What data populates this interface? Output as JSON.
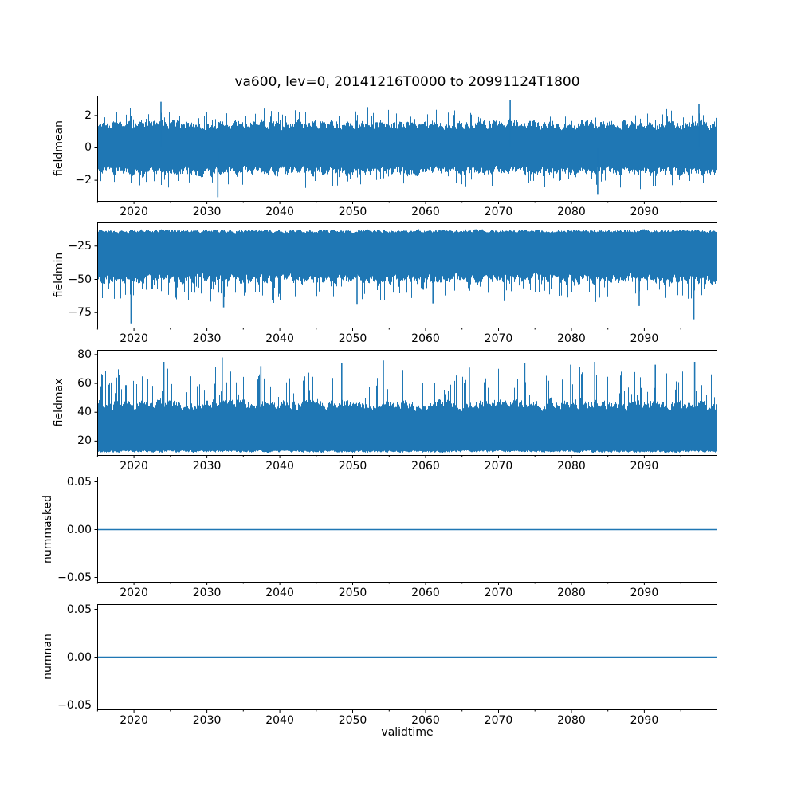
{
  "figure": {
    "title": "va600, lev=0, 20141216T0000 to 20991124T1800",
    "xlabel": "validtime",
    "line_color": "#1f77b4",
    "axis_color": "#000000",
    "background": "#ffffff",
    "seed": 1337
  },
  "x_axis": {
    "min": 2014.96,
    "max": 2099.9,
    "major_ticks": [
      2020,
      2030,
      2040,
      2050,
      2060,
      2070,
      2080,
      2090
    ],
    "major_tick_labels": [
      "2020",
      "2030",
      "2040",
      "2050",
      "2060",
      "2070",
      "2080",
      "2090"
    ],
    "minor_ticks": [
      2015,
      2025,
      2035,
      2045,
      2055,
      2065,
      2075,
      2085,
      2095
    ]
  },
  "chart_data": [
    {
      "type": "line",
      "name": "fieldmean",
      "ylabel": "fieldmean",
      "ylim": [
        -3.3,
        3.2
      ],
      "yticks": [
        2,
        0,
        -2
      ],
      "ytick_labels": [
        "2",
        "0",
        "−2"
      ],
      "series": {
        "kind": "dense-noise",
        "baseline": 0,
        "typical_band": [
          -2.2,
          2.2
        ],
        "extreme_anchor": 0,
        "envelope": {
          "top_base": 1.0,
          "top_var": 0.9,
          "spike_top": 1.0,
          "bot_base": -1.0,
          "bot_var": -0.9,
          "spike_bot": -1.0,
          "spike_prob": 0.1,
          "smooth": 0.5
        },
        "extremes": [
          {
            "x": 2023.7,
            "y": 2.85
          },
          {
            "x": 2031.5,
            "y": -3.05
          },
          {
            "x": 2071.6,
            "y": 2.95
          },
          {
            "x": 2083.6,
            "y": -2.9
          },
          {
            "x": 2097.5,
            "y": 2.7
          }
        ]
      }
    },
    {
      "type": "line",
      "name": "fieldmin",
      "ylabel": "fieldmin",
      "ylim": [
        -86.5,
        -7.5
      ],
      "yticks": [
        -25,
        -50,
        -75
      ],
      "ytick_labels": [
        "−25",
        "−50",
        "−75"
      ],
      "series": {
        "kind": "dense-noise",
        "baseline": -35,
        "typical_band": [
          -56,
          -12
        ],
        "extreme_anchor": -45,
        "envelope": {
          "top_base": -15.5,
          "top_var": 3.5,
          "spike_top": 0,
          "bot_base": -44,
          "bot_var": -12,
          "spike_bot": -15,
          "spike_prob": 0.16,
          "smooth": 0.5
        },
        "extremes": [
          {
            "x": 2019.6,
            "y": -83
          },
          {
            "x": 2032.3,
            "y": -71
          },
          {
            "x": 2050.6,
            "y": -69
          },
          {
            "x": 2061.0,
            "y": -68
          },
          {
            "x": 2089.3,
            "y": -70
          },
          {
            "x": 2096.8,
            "y": -80
          }
        ]
      }
    },
    {
      "type": "line",
      "name": "fieldmax",
      "ylabel": "fieldmax",
      "ylim": [
        10,
        83
      ],
      "yticks": [
        80,
        60,
        40,
        20
      ],
      "ytick_labels": [
        "80",
        "60",
        "40",
        "20"
      ],
      "series": {
        "kind": "dense-noise",
        "baseline": 30,
        "typical_band": [
          12,
          55
        ],
        "extreme_anchor": 42,
        "envelope": {
          "top_base": 40,
          "top_var": 11,
          "spike_top": 24,
          "bot_base": 11.5,
          "bot_var": 2.5,
          "spike_bot": 0,
          "spike_prob": 0.16,
          "smooth": 0.5
        },
        "extremes": [
          {
            "x": 2024.1,
            "y": 75
          },
          {
            "x": 2032.1,
            "y": 78
          },
          {
            "x": 2037.4,
            "y": 72
          },
          {
            "x": 2048.5,
            "y": 74
          },
          {
            "x": 2054.2,
            "y": 76
          },
          {
            "x": 2066.0,
            "y": 71
          },
          {
            "x": 2073.6,
            "y": 74
          },
          {
            "x": 2079.9,
            "y": 73
          },
          {
            "x": 2083.2,
            "y": 75
          },
          {
            "x": 2091.5,
            "y": 73
          },
          {
            "x": 2096.9,
            "y": 75
          }
        ]
      }
    },
    {
      "type": "line",
      "name": "nummasked",
      "ylabel": "nummasked",
      "ylim": [
        -0.055,
        0.055
      ],
      "yticks": [
        0.05,
        0,
        -0.05
      ],
      "ytick_labels": [
        "0.05",
        "0.00",
        "−0.05"
      ],
      "series": {
        "kind": "constant",
        "value": 0.0
      }
    },
    {
      "type": "line",
      "name": "numnan",
      "ylabel": "numnan",
      "ylim": [
        -0.055,
        0.055
      ],
      "yticks": [
        0.05,
        0,
        -0.05
      ],
      "ytick_labels": [
        "0.05",
        "0.00",
        "−0.05"
      ],
      "series": {
        "kind": "constant",
        "value": 0.0
      }
    }
  ]
}
